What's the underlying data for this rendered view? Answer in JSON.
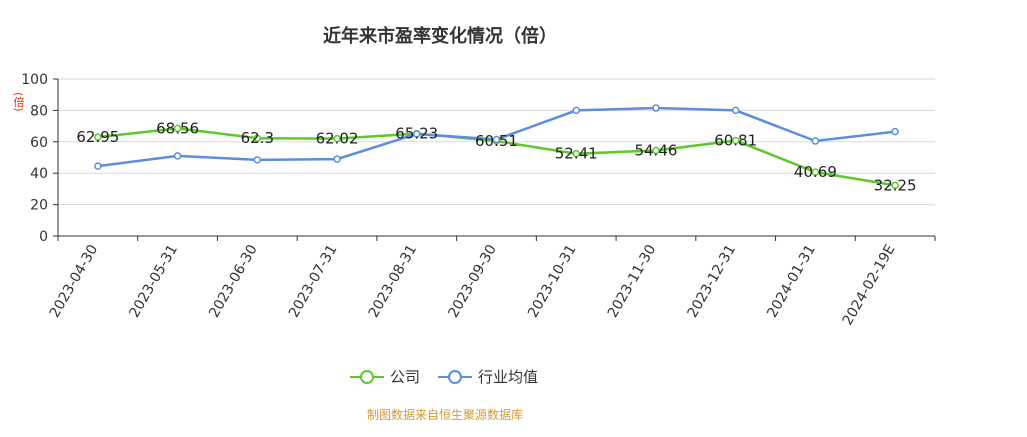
{
  "chart_data": {
    "type": "line",
    "title": "近年来市盈率变化情况（倍）",
    "ylabel": "(倍)",
    "xlabel": "",
    "ylim": [
      0,
      100
    ],
    "yticks": [
      0,
      20,
      40,
      60,
      80,
      100
    ],
    "grid": true,
    "legend_position": "bottom",
    "categories": [
      "2023-04-30",
      "2023-05-31",
      "2023-06-30",
      "2023-07-31",
      "2023-08-31",
      "2023-09-30",
      "2023-10-31",
      "2023-11-30",
      "2023-12-31",
      "2024-01-31",
      "2024-02-19E"
    ],
    "series": [
      {
        "name": "公司",
        "color": "#5cc82a",
        "values": [
          62.95,
          68.56,
          62.3,
          62.02,
          65.23,
          60.51,
          52.41,
          54.46,
          60.81,
          40.69,
          32.25
        ],
        "labels": [
          "62.95",
          "68.56",
          "62.3",
          "62.02",
          "65.23",
          "60.51",
          "52.41",
          "54.46",
          "60.81",
          "40.69",
          "32.25"
        ]
      },
      {
        "name": "行业均值",
        "color": "#5b8de0",
        "values": [
          44.5,
          51,
          48.5,
          49,
          65,
          61.5,
          80,
          81.5,
          80,
          60.5,
          66.5
        ]
      }
    ]
  },
  "source_note": "制图数据来自恒生聚源数据库"
}
